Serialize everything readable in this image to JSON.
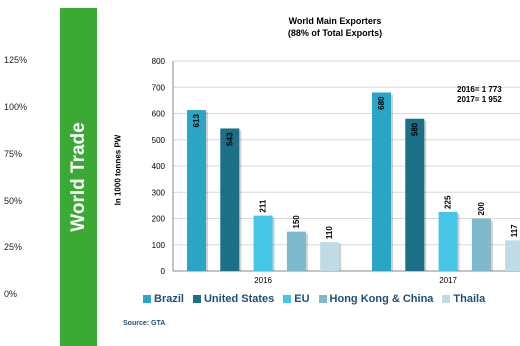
{
  "side_panel": {
    "title": "World Trade",
    "percent_labels": [
      "125%",
      "100%",
      "75%",
      "50%",
      "25%",
      "0%"
    ]
  },
  "chart_data": {
    "type": "bar",
    "title_line1": "World Main Exporters",
    "title_line2": "(88% of Total Exports)",
    "ylabel": "In 1000 tonnes PW",
    "ylim": [
      0,
      800
    ],
    "yticks": [
      0,
      100,
      200,
      300,
      400,
      500,
      600,
      700,
      800
    ],
    "categories": [
      "2016",
      "2017"
    ],
    "series": [
      {
        "name": "Brazil",
        "values": [
          613,
          680
        ],
        "color": "#2aa5c4"
      },
      {
        "name": "United States",
        "values": [
          543,
          580
        ],
        "color": "#1b6f87"
      },
      {
        "name": "EU",
        "values": [
          211,
          225
        ],
        "color": "#46c6e6"
      },
      {
        "name": "Hong Kong & China",
        "values": [
          150,
          200
        ],
        "color": "#7fb9cc"
      },
      {
        "name": "Thaila",
        "values": [
          110,
          117
        ],
        "color": "#bfdbe6"
      }
    ],
    "annotation_line1": "2016= 1 773",
    "annotation_line2": "2017= 1 952",
    "grid": true,
    "legend_position": "bottom"
  },
  "source": "Source: GTA"
}
